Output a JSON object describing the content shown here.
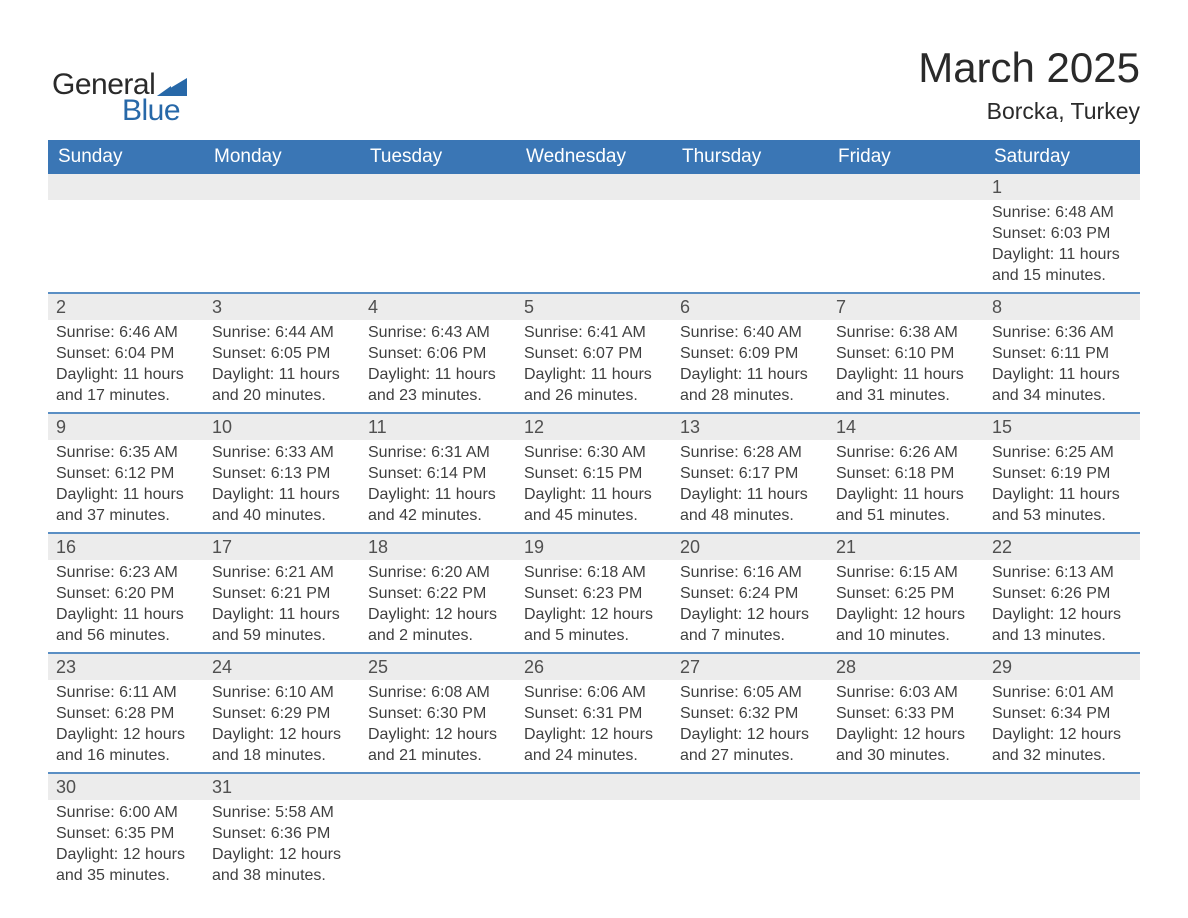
{
  "brand": {
    "word1": "General",
    "word2": "Blue",
    "triangle_color": "#2768a8",
    "word1_color": "#2a2a2a",
    "word2_color": "#2768a8"
  },
  "title": "March 2025",
  "location": "Borcka, Turkey",
  "header_bg": "#3a76b5",
  "header_text_color": "#ffffff",
  "daynum_bg": "#ececec",
  "row_border_color": "#5a8fc4",
  "body_text_color": "#404040",
  "background_color": "#ffffff",
  "columns": [
    "Sunday",
    "Monday",
    "Tuesday",
    "Wednesday",
    "Thursday",
    "Friday",
    "Saturday"
  ],
  "weeks": [
    [
      {
        "day": "",
        "lines": []
      },
      {
        "day": "",
        "lines": []
      },
      {
        "day": "",
        "lines": []
      },
      {
        "day": "",
        "lines": []
      },
      {
        "day": "",
        "lines": []
      },
      {
        "day": "",
        "lines": []
      },
      {
        "day": "1",
        "lines": [
          "Sunrise: 6:48 AM",
          "Sunset: 6:03 PM",
          "Daylight: 11 hours",
          "and 15 minutes."
        ]
      }
    ],
    [
      {
        "day": "2",
        "lines": [
          "Sunrise: 6:46 AM",
          "Sunset: 6:04 PM",
          "Daylight: 11 hours",
          "and 17 minutes."
        ]
      },
      {
        "day": "3",
        "lines": [
          "Sunrise: 6:44 AM",
          "Sunset: 6:05 PM",
          "Daylight: 11 hours",
          "and 20 minutes."
        ]
      },
      {
        "day": "4",
        "lines": [
          "Sunrise: 6:43 AM",
          "Sunset: 6:06 PM",
          "Daylight: 11 hours",
          "and 23 minutes."
        ]
      },
      {
        "day": "5",
        "lines": [
          "Sunrise: 6:41 AM",
          "Sunset: 6:07 PM",
          "Daylight: 11 hours",
          "and 26 minutes."
        ]
      },
      {
        "day": "6",
        "lines": [
          "Sunrise: 6:40 AM",
          "Sunset: 6:09 PM",
          "Daylight: 11 hours",
          "and 28 minutes."
        ]
      },
      {
        "day": "7",
        "lines": [
          "Sunrise: 6:38 AM",
          "Sunset: 6:10 PM",
          "Daylight: 11 hours",
          "and 31 minutes."
        ]
      },
      {
        "day": "8",
        "lines": [
          "Sunrise: 6:36 AM",
          "Sunset: 6:11 PM",
          "Daylight: 11 hours",
          "and 34 minutes."
        ]
      }
    ],
    [
      {
        "day": "9",
        "lines": [
          "Sunrise: 6:35 AM",
          "Sunset: 6:12 PM",
          "Daylight: 11 hours",
          "and 37 minutes."
        ]
      },
      {
        "day": "10",
        "lines": [
          "Sunrise: 6:33 AM",
          "Sunset: 6:13 PM",
          "Daylight: 11 hours",
          "and 40 minutes."
        ]
      },
      {
        "day": "11",
        "lines": [
          "Sunrise: 6:31 AM",
          "Sunset: 6:14 PM",
          "Daylight: 11 hours",
          "and 42 minutes."
        ]
      },
      {
        "day": "12",
        "lines": [
          "Sunrise: 6:30 AM",
          "Sunset: 6:15 PM",
          "Daylight: 11 hours",
          "and 45 minutes."
        ]
      },
      {
        "day": "13",
        "lines": [
          "Sunrise: 6:28 AM",
          "Sunset: 6:17 PM",
          "Daylight: 11 hours",
          "and 48 minutes."
        ]
      },
      {
        "day": "14",
        "lines": [
          "Sunrise: 6:26 AM",
          "Sunset: 6:18 PM",
          "Daylight: 11 hours",
          "and 51 minutes."
        ]
      },
      {
        "day": "15",
        "lines": [
          "Sunrise: 6:25 AM",
          "Sunset: 6:19 PM",
          "Daylight: 11 hours",
          "and 53 minutes."
        ]
      }
    ],
    [
      {
        "day": "16",
        "lines": [
          "Sunrise: 6:23 AM",
          "Sunset: 6:20 PM",
          "Daylight: 11 hours",
          "and 56 minutes."
        ]
      },
      {
        "day": "17",
        "lines": [
          "Sunrise: 6:21 AM",
          "Sunset: 6:21 PM",
          "Daylight: 11 hours",
          "and 59 minutes."
        ]
      },
      {
        "day": "18",
        "lines": [
          "Sunrise: 6:20 AM",
          "Sunset: 6:22 PM",
          "Daylight: 12 hours",
          "and 2 minutes."
        ]
      },
      {
        "day": "19",
        "lines": [
          "Sunrise: 6:18 AM",
          "Sunset: 6:23 PM",
          "Daylight: 12 hours",
          "and 5 minutes."
        ]
      },
      {
        "day": "20",
        "lines": [
          "Sunrise: 6:16 AM",
          "Sunset: 6:24 PM",
          "Daylight: 12 hours",
          "and 7 minutes."
        ]
      },
      {
        "day": "21",
        "lines": [
          "Sunrise: 6:15 AM",
          "Sunset: 6:25 PM",
          "Daylight: 12 hours",
          "and 10 minutes."
        ]
      },
      {
        "day": "22",
        "lines": [
          "Sunrise: 6:13 AM",
          "Sunset: 6:26 PM",
          "Daylight: 12 hours",
          "and 13 minutes."
        ]
      }
    ],
    [
      {
        "day": "23",
        "lines": [
          "Sunrise: 6:11 AM",
          "Sunset: 6:28 PM",
          "Daylight: 12 hours",
          "and 16 minutes."
        ]
      },
      {
        "day": "24",
        "lines": [
          "Sunrise: 6:10 AM",
          "Sunset: 6:29 PM",
          "Daylight: 12 hours",
          "and 18 minutes."
        ]
      },
      {
        "day": "25",
        "lines": [
          "Sunrise: 6:08 AM",
          "Sunset: 6:30 PM",
          "Daylight: 12 hours",
          "and 21 minutes."
        ]
      },
      {
        "day": "26",
        "lines": [
          "Sunrise: 6:06 AM",
          "Sunset: 6:31 PM",
          "Daylight: 12 hours",
          "and 24 minutes."
        ]
      },
      {
        "day": "27",
        "lines": [
          "Sunrise: 6:05 AM",
          "Sunset: 6:32 PM",
          "Daylight: 12 hours",
          "and 27 minutes."
        ]
      },
      {
        "day": "28",
        "lines": [
          "Sunrise: 6:03 AM",
          "Sunset: 6:33 PM",
          "Daylight: 12 hours",
          "and 30 minutes."
        ]
      },
      {
        "day": "29",
        "lines": [
          "Sunrise: 6:01 AM",
          "Sunset: 6:34 PM",
          "Daylight: 12 hours",
          "and 32 minutes."
        ]
      }
    ],
    [
      {
        "day": "30",
        "lines": [
          "Sunrise: 6:00 AM",
          "Sunset: 6:35 PM",
          "Daylight: 12 hours",
          "and 35 minutes."
        ]
      },
      {
        "day": "31",
        "lines": [
          "Sunrise: 5:58 AM",
          "Sunset: 6:36 PM",
          "Daylight: 12 hours",
          "and 38 minutes."
        ]
      },
      {
        "day": "",
        "lines": []
      },
      {
        "day": "",
        "lines": []
      },
      {
        "day": "",
        "lines": []
      },
      {
        "day": "",
        "lines": []
      },
      {
        "day": "",
        "lines": []
      }
    ]
  ]
}
